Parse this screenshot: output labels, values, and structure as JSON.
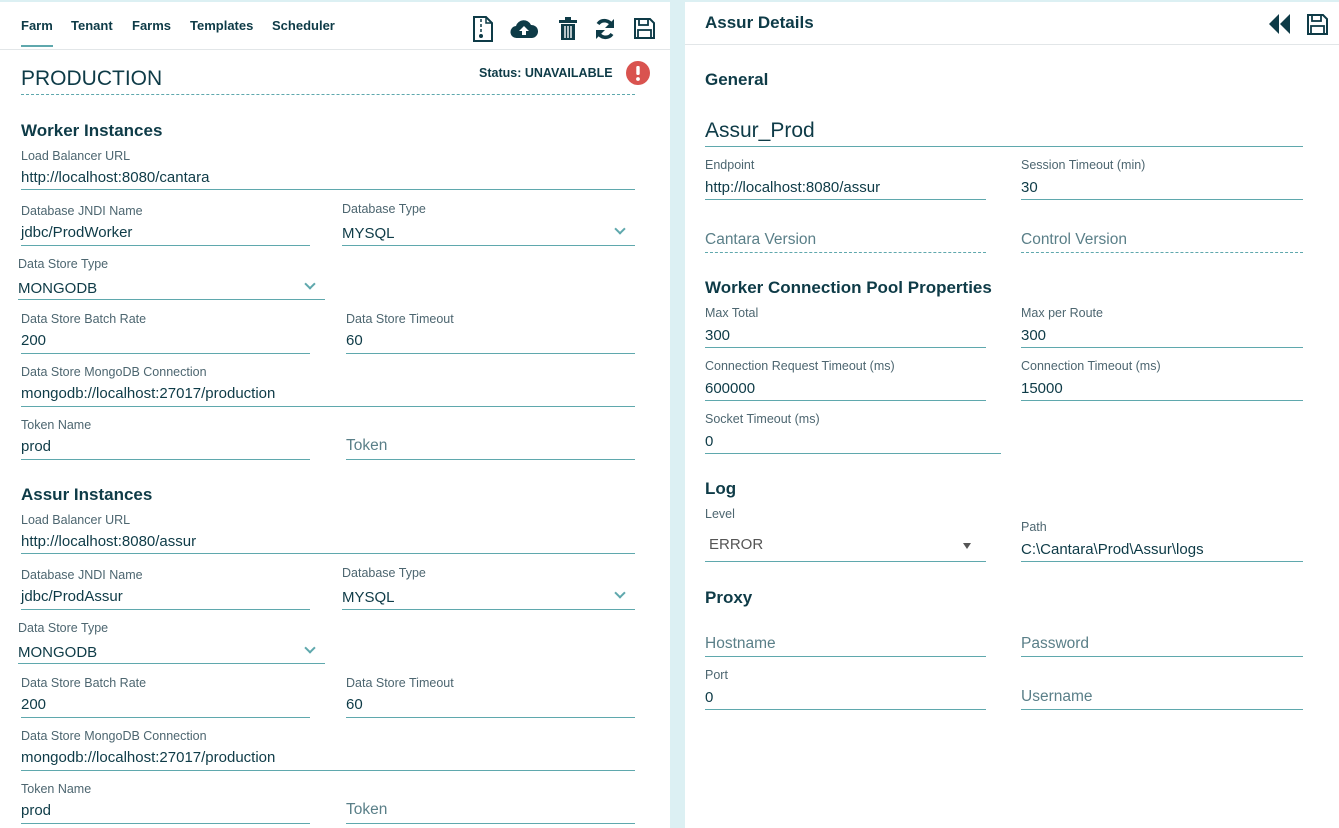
{
  "tabs": [
    {
      "label": "Farm",
      "active": true
    },
    {
      "label": "Tenant"
    },
    {
      "label": "Farms"
    },
    {
      "label": "Templates"
    },
    {
      "label": "Scheduler"
    }
  ],
  "toolbar_icons": [
    "zip-file-icon",
    "cloud-upload-icon",
    "trash-icon",
    "refresh-icon",
    "save-icon"
  ],
  "farm": {
    "name": "PRODUCTION",
    "status": "Status: UNAVAILABLE",
    "status_icon": "exclamation-circle-icon",
    "status_color": "#d9534f"
  },
  "worker": {
    "heading": "Worker Instances",
    "lb_url_label": "Load Balancer URL",
    "lb_url": "http://localhost:8080/cantara",
    "jndi_label": "Database JNDI Name",
    "jndi": "jdbc/ProdWorker",
    "db_type_label": "Database Type",
    "db_type": "MYSQL",
    "ds_type_label": "Data Store Type",
    "ds_type": "MONGODB",
    "batch_label": "Data Store Batch Rate",
    "batch": "200",
    "timeout_label": "Data Store Timeout",
    "timeout": "60",
    "mongo_label": "Data Store MongoDB Connection",
    "mongo": "mongodb://localhost:27017/production",
    "token_name_label": "Token Name",
    "token_name": "prod",
    "token_placeholder": "Token"
  },
  "assur": {
    "heading": "Assur Instances",
    "lb_url_label": "Load Balancer URL",
    "lb_url": "http://localhost:8080/assur",
    "jndi_label": "Database JNDI Name",
    "jndi": "jdbc/ProdAssur",
    "db_type_label": "Database Type",
    "db_type": "MYSQL",
    "ds_type_label": "Data Store Type",
    "ds_type": "MONGODB",
    "batch_label": "Data Store Batch Rate",
    "batch": "200",
    "timeout_label": "Data Store Timeout",
    "timeout": "60",
    "mongo_label": "Data Store MongoDB Connection",
    "mongo": "mongodb://localhost:27017/production",
    "token_name_label": "Token Name",
    "token_name": "prod",
    "token_placeholder": "Token"
  },
  "details": {
    "title": "Assur Details",
    "icons": [
      "rewind-icon",
      "save-icon"
    ],
    "general_heading": "General",
    "name": "Assur_Prod",
    "endpoint_label": "Endpoint",
    "endpoint": "http://localhost:8080/assur",
    "session_label": "Session Timeout (min)",
    "session": "30",
    "cantara_version_placeholder": "Cantara Version",
    "control_version_placeholder": "Control Version",
    "pool_heading": "Worker Connection Pool Properties",
    "max_total_label": "Max Total",
    "max_total": "300",
    "max_route_label": "Max per Route",
    "max_route": "300",
    "conn_req_label": "Connection Request Timeout (ms)",
    "conn_req": "600000",
    "conn_timeout_label": "Connection Timeout (ms)",
    "conn_timeout": "15000",
    "socket_label": "Socket Timeout (ms)",
    "socket": "0",
    "log_heading": "Log",
    "level_label": "Level",
    "level": "ERROR",
    "path_label": "Path",
    "path": "C:\\Cantara\\Prod\\Assur\\logs",
    "proxy_heading": "Proxy",
    "hostname_placeholder": "Hostname",
    "password_placeholder": "Password",
    "port_label": "Port",
    "port": "0",
    "username_placeholder": "Username"
  },
  "colors": {
    "accent": "#5fa8ad",
    "text": "#0e3b47",
    "background": "#dcf0f3",
    "error": "#d9534f"
  }
}
